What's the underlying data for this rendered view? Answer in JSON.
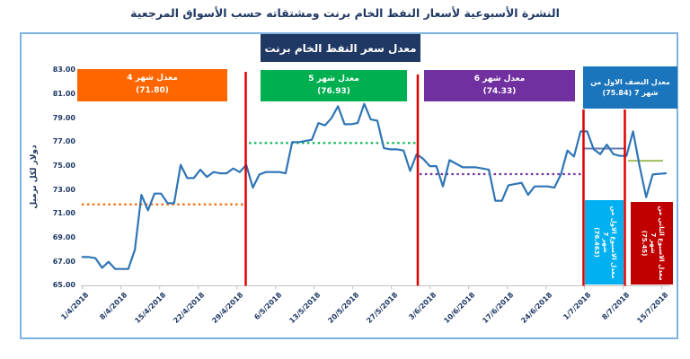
{
  "page_title": "النشرة الأسبوعية  لأسعار النفط الخام برنت ومشتقاته حسب الأسواق المرجعية",
  "chart": {
    "title": "معدل سعر النفط الخام برنت"
  },
  "colors": {
    "frame_border": "#7EB2E0",
    "title_text": "#1F3864",
    "axis_text": "#1F3864",
    "axis_line": "#BFBFBF",
    "price_line": "#2E75B6",
    "separator": "#E00000"
  },
  "chart_data": {
    "type": "line",
    "title": "معدل سعر النفط الخام برنت",
    "ylabel": "دولار لكل برميل",
    "xlabel": "",
    "ylim": [
      65,
      83
    ],
    "grid": false,
    "legend": false,
    "ytick_labels": [
      "83.00",
      "81.00",
      "79.00",
      "77.00",
      "75.00",
      "73.00",
      "71.00",
      "69.00",
      "67.00",
      "65.00"
    ],
    "xtick_labels": [
      "1/4/2018",
      "8/4/2018",
      "15/4/2018",
      "22/4/2018",
      "29/4/2018",
      "6/5/2018",
      "13/5/2018",
      "20/5/2018",
      "27/5/2018",
      "3/6/2018",
      "10/6/2018",
      "17/6/2018",
      "24/6/2018",
      "1/7/2018",
      "8/7/2018",
      "15/7/2018"
    ],
    "series": [
      {
        "name": "سعر النفط الخام برنت",
        "color": "#2E75B6",
        "values": [
          67.4,
          67.4,
          67.3,
          66.5,
          67.0,
          66.4,
          66.4,
          66.4,
          68.0,
          72.6,
          71.3,
          72.7,
          72.7,
          71.9,
          71.9,
          75.1,
          74.0,
          74.0,
          74.7,
          74.1,
          74.5,
          74.4,
          74.4,
          74.8,
          74.5,
          75.1,
          73.2,
          74.3,
          74.5,
          74.5,
          74.5,
          74.4,
          77.0,
          77.0,
          77.1,
          77.2,
          78.6,
          78.4,
          79.0,
          80.0,
          78.5,
          78.5,
          78.6,
          80.2,
          78.9,
          78.8,
          76.5,
          76.4,
          76.4,
          76.3,
          74.6,
          76.0,
          75.6,
          75.0,
          75.0,
          73.3,
          75.5,
          75.2,
          74.9,
          74.9,
          74.9,
          74.8,
          74.7,
          72.1,
          72.1,
          73.4,
          73.5,
          73.6,
          72.6,
          73.3,
          73.3,
          73.3,
          73.2,
          74.3,
          76.3,
          75.8,
          77.9,
          77.9,
          76.4,
          76.0,
          76.8,
          76.0,
          75.85,
          75.85,
          77.9,
          75.0,
          72.4,
          74.3,
          74.35,
          74.4
        ]
      }
    ],
    "month_averages": [
      {
        "label_lines": [
          "معدل شهر 4",
          "(71.80)"
        ],
        "value": 71.8,
        "box_color": "#FF6600",
        "line_style": "dotted"
      },
      {
        "label_lines": [
          "معدل شهر 5",
          "(76.93)"
        ],
        "value": 76.93,
        "box_color": "#00B050",
        "line_style": "dotted"
      },
      {
        "label_lines": [
          "معدل شهر 6",
          "(74.33)"
        ],
        "value": 74.33,
        "box_color": "#7030A0",
        "line_style": "dotted"
      },
      {
        "label_lines": [
          "معدل النصف الاول من",
          "شهر 7 (75.84)"
        ],
        "value": 75.84,
        "box_color": "#1B75BC",
        "line_style": "none"
      }
    ],
    "week_averages": [
      {
        "label_lines": [
          "معدل الاسبوع الاول من",
          "شهر 7",
          "(76.463)"
        ],
        "value": 76.463,
        "box_color": "#00B0F0",
        "line_color": "#6678B0"
      },
      {
        "label_lines": [
          "معدل الاسبوع الثاني من",
          "شهر 7",
          "(75.45)"
        ],
        "value": 75.45,
        "box_color": "#C00000",
        "line_color": "#9EBE5F"
      }
    ],
    "separator_color": "#E00000"
  }
}
